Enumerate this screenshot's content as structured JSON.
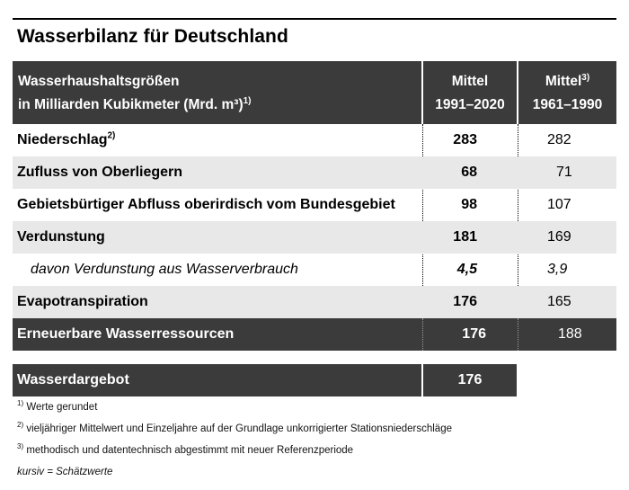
{
  "title": "Wasserbilanz für Deutschland",
  "header": {
    "label_line1": "Wasserhaushaltsgrößen",
    "label_line2": "in Milliarden Kubikmeter (Mrd. m³)",
    "label_sup": "1)",
    "col1_line1": "Mittel",
    "col1_line2": "1991–2020",
    "col2_line1": "Mittel",
    "col2_sup": "3)",
    "col2_line2": "1961–1990"
  },
  "rows": [
    {
      "label": "Niederschlag",
      "sup": "2)",
      "v1": "283",
      "v2": "282"
    },
    {
      "label": "Zufluss von Oberliegern",
      "v1": "68",
      "v2": "71"
    },
    {
      "label": "Gebietsbürtiger Abfluss oberirdisch vom Bundesgebiet",
      "v1": "98",
      "v2": "107"
    },
    {
      "label": "Verdunstung",
      "v1": "181",
      "v2": "169"
    },
    {
      "label": "davon Verdunstung aus Wasserverbrauch",
      "v1": "4,5",
      "v2": "3,9"
    },
    {
      "label": "Evapotranspiration",
      "v1": "176",
      "v2": "165"
    },
    {
      "label": "Erneuerbare Wasserressourcen",
      "v1": "176",
      "v2": "188"
    }
  ],
  "supply": {
    "label": "Wasserdargebot",
    "value": "176"
  },
  "footnotes": [
    {
      "mark": "1)",
      "text": "Werte gerundet"
    },
    {
      "mark": "2)",
      "text": "vieljähriger Mittelwert und Einzeljahre auf der Grundlage unkorrigierter Stationsniederschläge"
    },
    {
      "mark": "3)",
      "text": "methodisch und datentechnisch abgestimmt mit neuer Referenzperiode"
    }
  ],
  "legend_note": "kursiv = Schätzwerte"
}
